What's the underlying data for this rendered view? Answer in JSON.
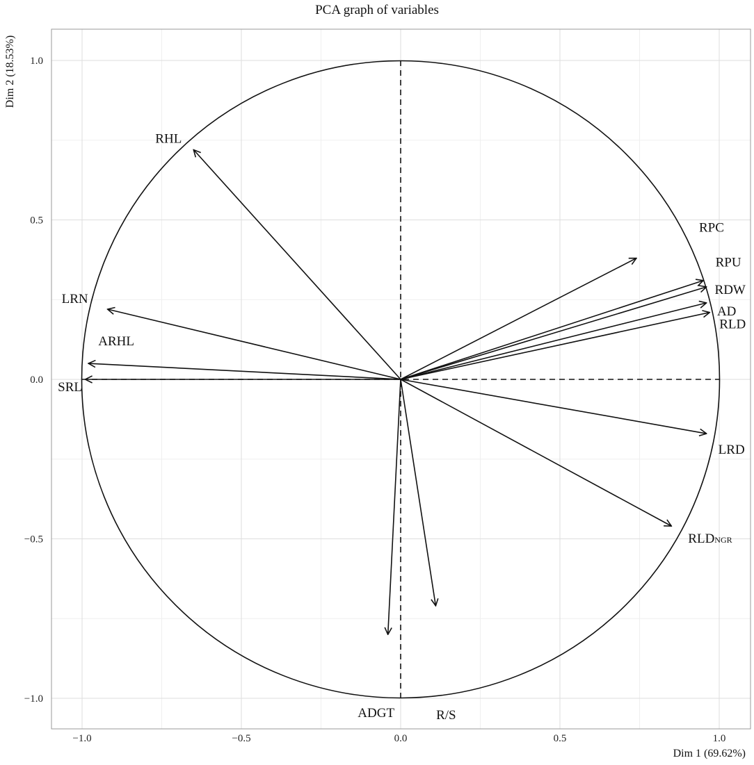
{
  "chart_data": {
    "type": "scatter",
    "title": "PCA graph of variables",
    "xlabel": "Dim 1 (69.62%)",
    "ylabel": "Dim 2 (18.53%)",
    "xlim": [
      -1.1,
      1.1
    ],
    "ylim": [
      -1.1,
      1.1
    ],
    "x_ticks": [
      -1.0,
      -0.5,
      0.0,
      0.5,
      1.0
    ],
    "y_ticks": [
      -1.0,
      -0.5,
      0.0,
      0.5,
      1.0
    ],
    "x_tick_labels": [
      "−1.0",
      "−0.5",
      "0.0",
      "0.5",
      "1.0"
    ],
    "y_tick_labels": [
      "−1.0",
      "−0.5",
      "0.0",
      "0.5",
      "1.0"
    ],
    "grid": true,
    "unit_circle": true,
    "variables": [
      {
        "name": "RHL",
        "x": -0.65,
        "y": 0.72
      },
      {
        "name": "RPC",
        "x": 0.74,
        "y": 0.38
      },
      {
        "name": "RPU",
        "x": 0.95,
        "y": 0.31
      },
      {
        "name": "RDW",
        "x": 0.96,
        "y": 0.29
      },
      {
        "name": "AD",
        "x": 0.96,
        "y": 0.24
      },
      {
        "name": "RLD",
        "x": 0.97,
        "y": 0.21
      },
      {
        "name": "LRN",
        "x": -0.92,
        "y": 0.22
      },
      {
        "name": "ARHL",
        "x": -0.98,
        "y": 0.05
      },
      {
        "name": "SRL",
        "x": -0.99,
        "y": 0.0
      },
      {
        "name": "LRD",
        "x": 0.96,
        "y": -0.17
      },
      {
        "name": "RLD",
        "sub": "NGR",
        "x": 0.85,
        "y": -0.46
      },
      {
        "name": "R/S",
        "x": 0.11,
        "y": -0.71
      },
      {
        "name": "ADGT",
        "x": -0.04,
        "y": -0.8
      }
    ]
  }
}
